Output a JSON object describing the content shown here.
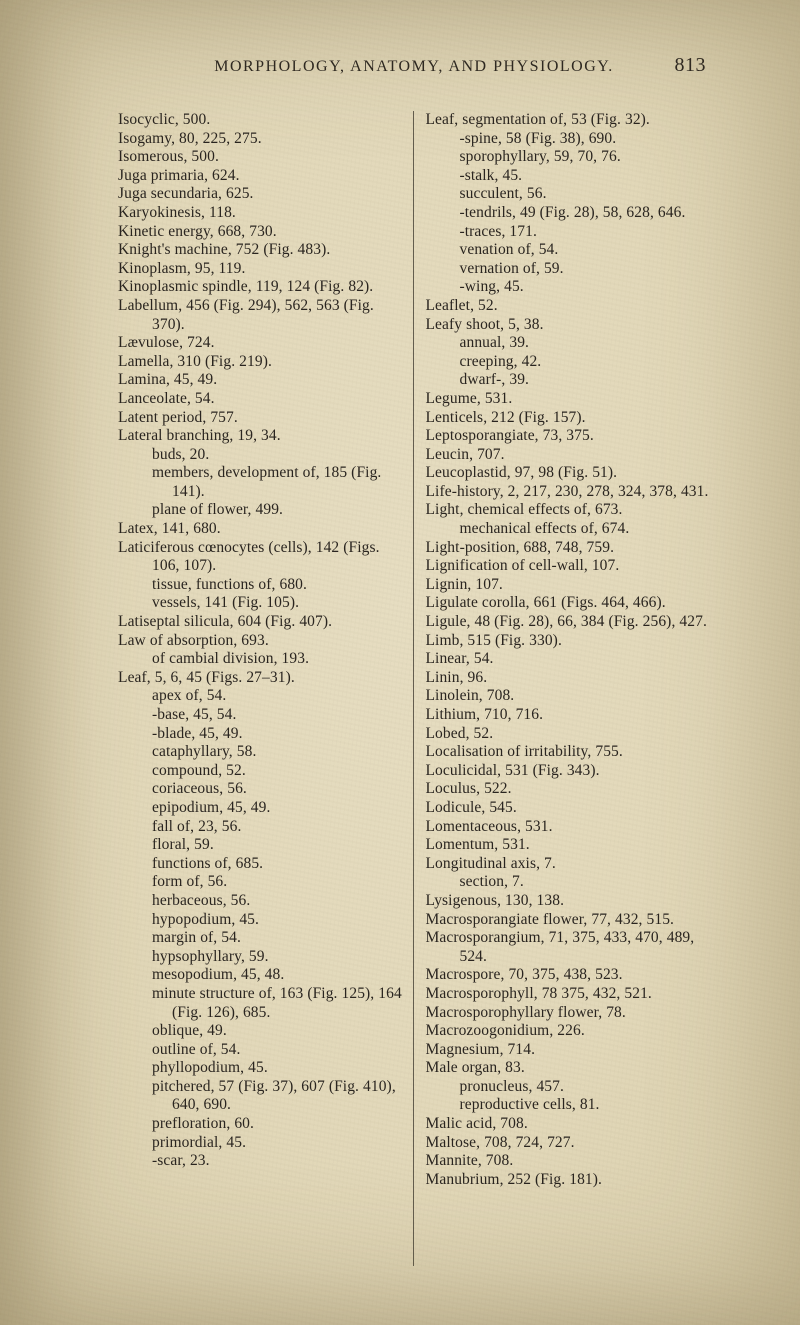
{
  "meta": {
    "running_head": "MORPHOLOGY, ANATOMY, AND PHYSIOLOGY.",
    "page_number": "813"
  },
  "left_column": [
    {
      "cls": "hang",
      "t": "Isocyclic, 500."
    },
    {
      "cls": "hang",
      "t": "Isogamy, 80, 225, 275."
    },
    {
      "cls": "hang",
      "t": "Isomerous, 500."
    },
    {
      "cls": "hang",
      "t": ""
    },
    {
      "cls": "hang",
      "t": "Juga primaria, 624."
    },
    {
      "cls": "hang",
      "t": "Juga secundaria, 625."
    },
    {
      "cls": "hang",
      "t": ""
    },
    {
      "cls": "hang",
      "t": "Karyokinesis, 118."
    },
    {
      "cls": "hang",
      "t": "Kinetic energy, 668, 730."
    },
    {
      "cls": "hang",
      "t": "Knight's machine, 752 (Fig. 483)."
    },
    {
      "cls": "hang",
      "t": "Kinoplasm, 95, 119."
    },
    {
      "cls": "hang",
      "t": "Kinoplasmic spindle, 119, 124 (Fig. 82)."
    },
    {
      "cls": "hang",
      "t": ""
    },
    {
      "cls": "hang",
      "t": "Labellum, 456 (Fig. 294), 562, 563 (Fig. 370)."
    },
    {
      "cls": "hang",
      "t": "Lævulose, 724."
    },
    {
      "cls": "hang",
      "t": "Lamella, 310 (Fig. 219)."
    },
    {
      "cls": "hang",
      "t": "Lamina, 45, 49."
    },
    {
      "cls": "hang",
      "t": "Lanceolate, 54."
    },
    {
      "cls": "hang",
      "t": "Latent period, 757."
    },
    {
      "cls": "hang",
      "t": "Lateral branching, 19, 34."
    },
    {
      "cls": "sub1",
      "t": "buds, 20."
    },
    {
      "cls": "sub1",
      "t": "members, development of, 185 (Fig. 141)."
    },
    {
      "cls": "sub1",
      "t": "plane of flower, 499."
    },
    {
      "cls": "hang",
      "t": "Latex, 141, 680."
    },
    {
      "cls": "hang",
      "t": "Laticiferous cœnocytes (cells), 142 (Figs. 106, 107)."
    },
    {
      "cls": "sub1",
      "t": "tissue, functions of, 680."
    },
    {
      "cls": "sub1",
      "t": "vessels, 141 (Fig. 105)."
    },
    {
      "cls": "hang",
      "t": "Latiseptal silicula, 604 (Fig. 407)."
    },
    {
      "cls": "hang",
      "t": "Law of absorption, 693."
    },
    {
      "cls": "sub1",
      "t": "of cambial division, 193."
    },
    {
      "cls": "hang",
      "t": "Leaf, 5, 6, 45 (Figs. 27–31)."
    },
    {
      "cls": "sub1",
      "t": "apex of, 54."
    },
    {
      "cls": "sub1",
      "t": "-base, 45, 54."
    },
    {
      "cls": "sub1",
      "t": "-blade, 45, 49."
    },
    {
      "cls": "sub1",
      "t": "cataphyllary, 58."
    },
    {
      "cls": "sub1",
      "t": "compound, 52."
    },
    {
      "cls": "sub1",
      "t": "coriaceous, 56."
    },
    {
      "cls": "sub1",
      "t": "epipodium, 45, 49."
    },
    {
      "cls": "sub1",
      "t": "fall of, 23, 56."
    },
    {
      "cls": "sub1",
      "t": "floral, 59."
    },
    {
      "cls": "sub1",
      "t": "functions of, 685."
    },
    {
      "cls": "sub1",
      "t": "form of, 56."
    },
    {
      "cls": "sub1",
      "t": "herbaceous, 56."
    },
    {
      "cls": "sub1",
      "t": "hypopodium, 45."
    },
    {
      "cls": "sub1",
      "t": "margin of, 54."
    },
    {
      "cls": "sub1",
      "t": "hypsophyllary, 59."
    },
    {
      "cls": "sub1",
      "t": "mesopodium, 45, 48."
    },
    {
      "cls": "sub1",
      "t": "minute structure of, 163 (Fig. 125), 164 (Fig. 126), 685."
    },
    {
      "cls": "sub1",
      "t": "oblique, 49."
    },
    {
      "cls": "sub1",
      "t": "outline of, 54."
    },
    {
      "cls": "sub1",
      "t": "phyllopodium, 45."
    },
    {
      "cls": "sub1",
      "t": "pitchered, 57 (Fig. 37), 607 (Fig. 410), 640, 690."
    },
    {
      "cls": "sub1",
      "t": "prefloration, 60."
    },
    {
      "cls": "sub1",
      "t": "primordial, 45."
    },
    {
      "cls": "sub1",
      "t": "-scar, 23."
    }
  ],
  "right_column": [
    {
      "cls": "hang",
      "t": "Leaf, segmentation of, 53 (Fig. 32)."
    },
    {
      "cls": "sub1",
      "t": "-spine, 58 (Fig. 38), 690."
    },
    {
      "cls": "sub1",
      "t": "sporophyllary, 59, 70, 76."
    },
    {
      "cls": "sub1",
      "t": "-stalk, 45."
    },
    {
      "cls": "sub1",
      "t": "succulent, 56."
    },
    {
      "cls": "sub1",
      "t": "-tendrils, 49 (Fig. 28), 58, 628, 646."
    },
    {
      "cls": "sub1",
      "t": "-traces, 171."
    },
    {
      "cls": "sub1",
      "t": "venation of, 54."
    },
    {
      "cls": "sub1",
      "t": "vernation of, 59."
    },
    {
      "cls": "sub1",
      "t": "-wing, 45."
    },
    {
      "cls": "hang",
      "t": "Leaflet, 52."
    },
    {
      "cls": "hang",
      "t": "Leafy shoot, 5, 38."
    },
    {
      "cls": "sub1",
      "t": "annual, 39."
    },
    {
      "cls": "sub1",
      "t": "creeping, 42."
    },
    {
      "cls": "sub1",
      "t": "dwarf-, 39."
    },
    {
      "cls": "hang",
      "t": "Legume, 531."
    },
    {
      "cls": "hang",
      "t": "Lenticels, 212 (Fig. 157)."
    },
    {
      "cls": "hang",
      "t": "Leptosporangiate, 73, 375."
    },
    {
      "cls": "hang",
      "t": "Leucin, 707."
    },
    {
      "cls": "hang",
      "t": "Leucoplastid, 97, 98 (Fig. 51)."
    },
    {
      "cls": "hang",
      "t": "Life-history, 2, 217, 230, 278, 324, 378, 431."
    },
    {
      "cls": "hang",
      "t": "Light, chemical effects of, 673."
    },
    {
      "cls": "sub1",
      "t": "mechanical effects of, 674."
    },
    {
      "cls": "hang",
      "t": "Light-position, 688, 748, 759."
    },
    {
      "cls": "hang",
      "t": "Lignification of cell-wall, 107."
    },
    {
      "cls": "hang",
      "t": "Lignin, 107."
    },
    {
      "cls": "hang",
      "t": "Ligulate corolla, 661 (Figs. 464, 466)."
    },
    {
      "cls": "hang",
      "t": "Ligule, 48 (Fig. 28), 66, 384 (Fig. 256), 427."
    },
    {
      "cls": "hang",
      "t": "Limb, 515 (Fig. 330)."
    },
    {
      "cls": "hang",
      "t": "Linear, 54."
    },
    {
      "cls": "hang",
      "t": "Linin, 96."
    },
    {
      "cls": "hang",
      "t": "Linolein, 708."
    },
    {
      "cls": "hang",
      "t": "Lithium, 710, 716."
    },
    {
      "cls": "hang",
      "t": "Lobed, 52."
    },
    {
      "cls": "hang",
      "t": "Localisation of irritability, 755."
    },
    {
      "cls": "hang",
      "t": "Loculicidal, 531 (Fig. 343)."
    },
    {
      "cls": "hang",
      "t": "Loculus, 522."
    },
    {
      "cls": "hang",
      "t": "Lodicule, 545."
    },
    {
      "cls": "hang",
      "t": "Lomentaceous, 531."
    },
    {
      "cls": "hang",
      "t": "Lomentum, 531."
    },
    {
      "cls": "hang",
      "t": "Longitudinal axis, 7."
    },
    {
      "cls": "sub1",
      "t": "section, 7."
    },
    {
      "cls": "hang",
      "t": "Lysigenous, 130, 138."
    },
    {
      "cls": "hang",
      "t": ""
    },
    {
      "cls": "hang",
      "t": "Macrosporangiate flower, 77, 432, 515."
    },
    {
      "cls": "hang",
      "t": "Macrosporangium, 71, 375, 433, 470, 489, 524."
    },
    {
      "cls": "hang",
      "t": "Macrospore, 70, 375, 438, 523."
    },
    {
      "cls": "hang",
      "t": "Macrosporophyll, 78 375, 432, 521."
    },
    {
      "cls": "hang",
      "t": "Macrosporophyllary flower, 78."
    },
    {
      "cls": "hang",
      "t": "Macrozoogonidium, 226."
    },
    {
      "cls": "hang",
      "t": "Magnesium, 714."
    },
    {
      "cls": "hang",
      "t": "Male organ, 83."
    },
    {
      "cls": "sub1",
      "t": "pronucleus, 457."
    },
    {
      "cls": "sub1",
      "t": "reproductive cells, 81."
    },
    {
      "cls": "hang",
      "t": "Malic acid, 708."
    },
    {
      "cls": "hang",
      "t": "Maltose, 708, 724, 727."
    },
    {
      "cls": "hang",
      "t": "Mannite, 708."
    },
    {
      "cls": "hang",
      "t": "Manubrium, 252 (Fig. 181)."
    }
  ]
}
